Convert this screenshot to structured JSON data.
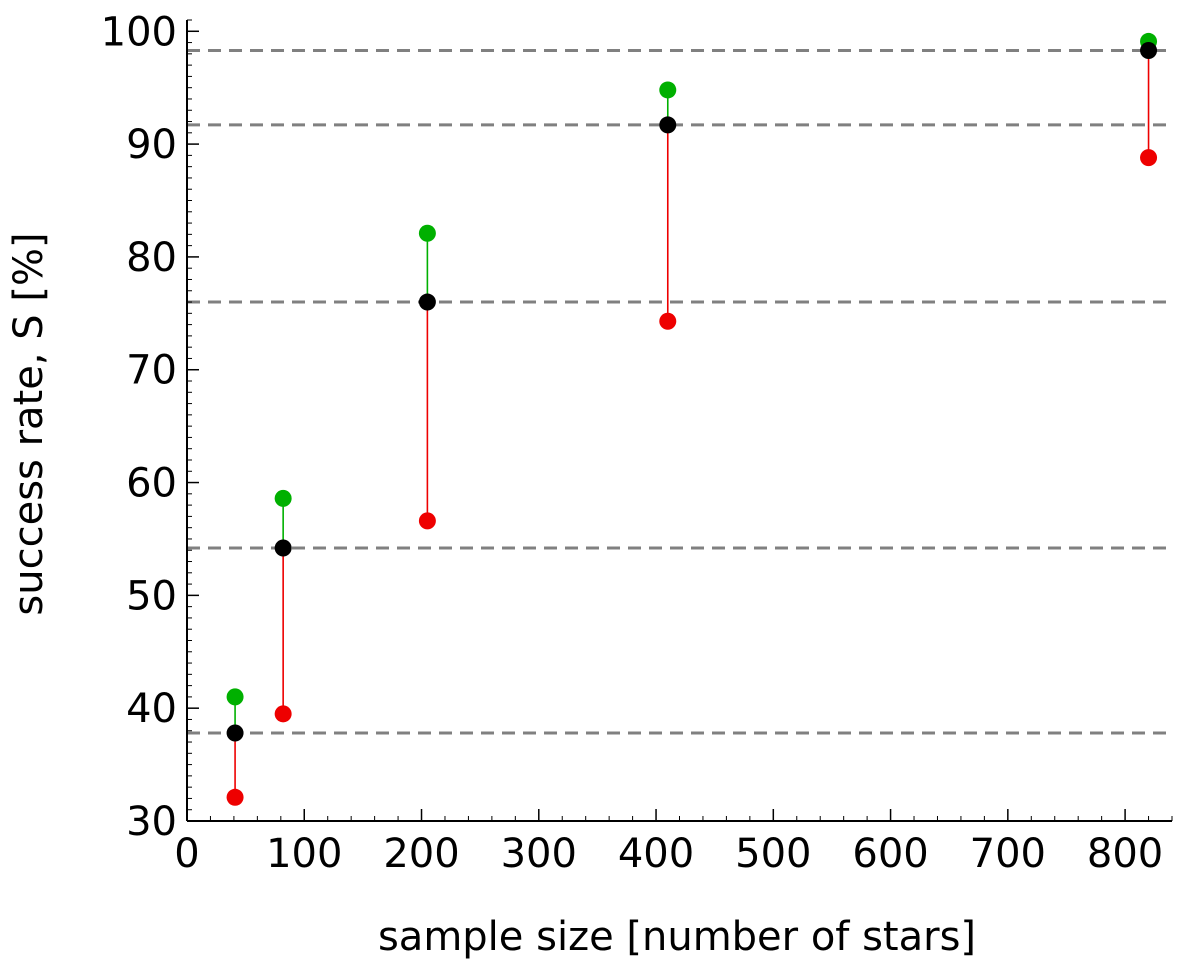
{
  "chart_data": {
    "type": "scatter",
    "title": "",
    "xlabel": "sample size [number of stars]",
    "ylabel": "success rate,  S [%]",
    "xlim": [
      0,
      840
    ],
    "ylim": [
      30,
      101
    ],
    "x_ticks": [
      0,
      100,
      200,
      300,
      400,
      500,
      600,
      700,
      800
    ],
    "y_ticks": [
      30,
      40,
      50,
      60,
      70,
      80,
      90,
      100
    ],
    "grid": false,
    "legend": "none",
    "reference_lines": [
      37.8,
      54.2,
      76.0,
      91.7,
      98.3
    ],
    "reference_line_style": "dashed gray",
    "x": [
      41,
      82,
      205,
      410,
      820
    ],
    "series": [
      {
        "marker_color": "#000000",
        "values": [
          37.8,
          54.2,
          76.0,
          91.7,
          98.3
        ]
      },
      {
        "marker_color": "#00b000",
        "values": [
          41.0,
          58.6,
          82.1,
          94.8,
          99.1
        ]
      },
      {
        "marker_color": "#ee0000",
        "values": [
          32.1,
          39.5,
          56.6,
          74.3,
          88.8
        ]
      }
    ],
    "colors": {
      "upper_bar": "#00b000",
      "lower_bar": "#ee0000",
      "center": "#000000",
      "reference": "#808080"
    }
  }
}
